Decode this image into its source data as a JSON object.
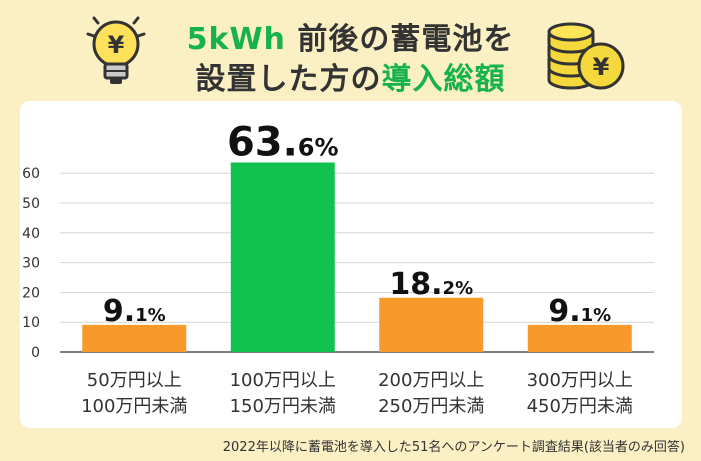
{
  "title": {
    "line1_highlight": "5kWh",
    "line1_rest": " 前後の蓄電池を",
    "line2_rest": "設置した方の",
    "line2_highlight": "導入総額"
  },
  "icons": {
    "bulb": "lightbulb-yen-icon",
    "coins": "coin-stack-yen-icon",
    "yen_glyph": "¥"
  },
  "colors": {
    "background": "#fbefc4",
    "highlight_bar": "#12c24f",
    "default_bar": "#f79a2b",
    "title_highlight": "#16b24a",
    "text": "#333333"
  },
  "chart_data": {
    "type": "bar",
    "categories": [
      [
        "50万円以上",
        "100万円未満"
      ],
      [
        "100万円以上",
        "150万円未満"
      ],
      [
        "200万円以上",
        "250万円未満"
      ],
      [
        "300万円以上",
        "450万円未満"
      ]
    ],
    "values": [
      9.1,
      63.6,
      18.2,
      9.1
    ],
    "value_labels": [
      {
        "main": "9.",
        "small": "1%"
      },
      {
        "main": "63.",
        "small": "6%"
      },
      {
        "main": "18.",
        "small": "2%"
      },
      {
        "main": "9.",
        "small": "1%"
      }
    ],
    "highlight_index": 1,
    "yticks": [
      0,
      10,
      20,
      30,
      40,
      50,
      60
    ],
    "ylim": [
      0,
      66
    ],
    "grid": true
  },
  "footnote": "2022年以降に蓄電池を導入した51名へのアンケート調査結果(該当者のみ回答)"
}
